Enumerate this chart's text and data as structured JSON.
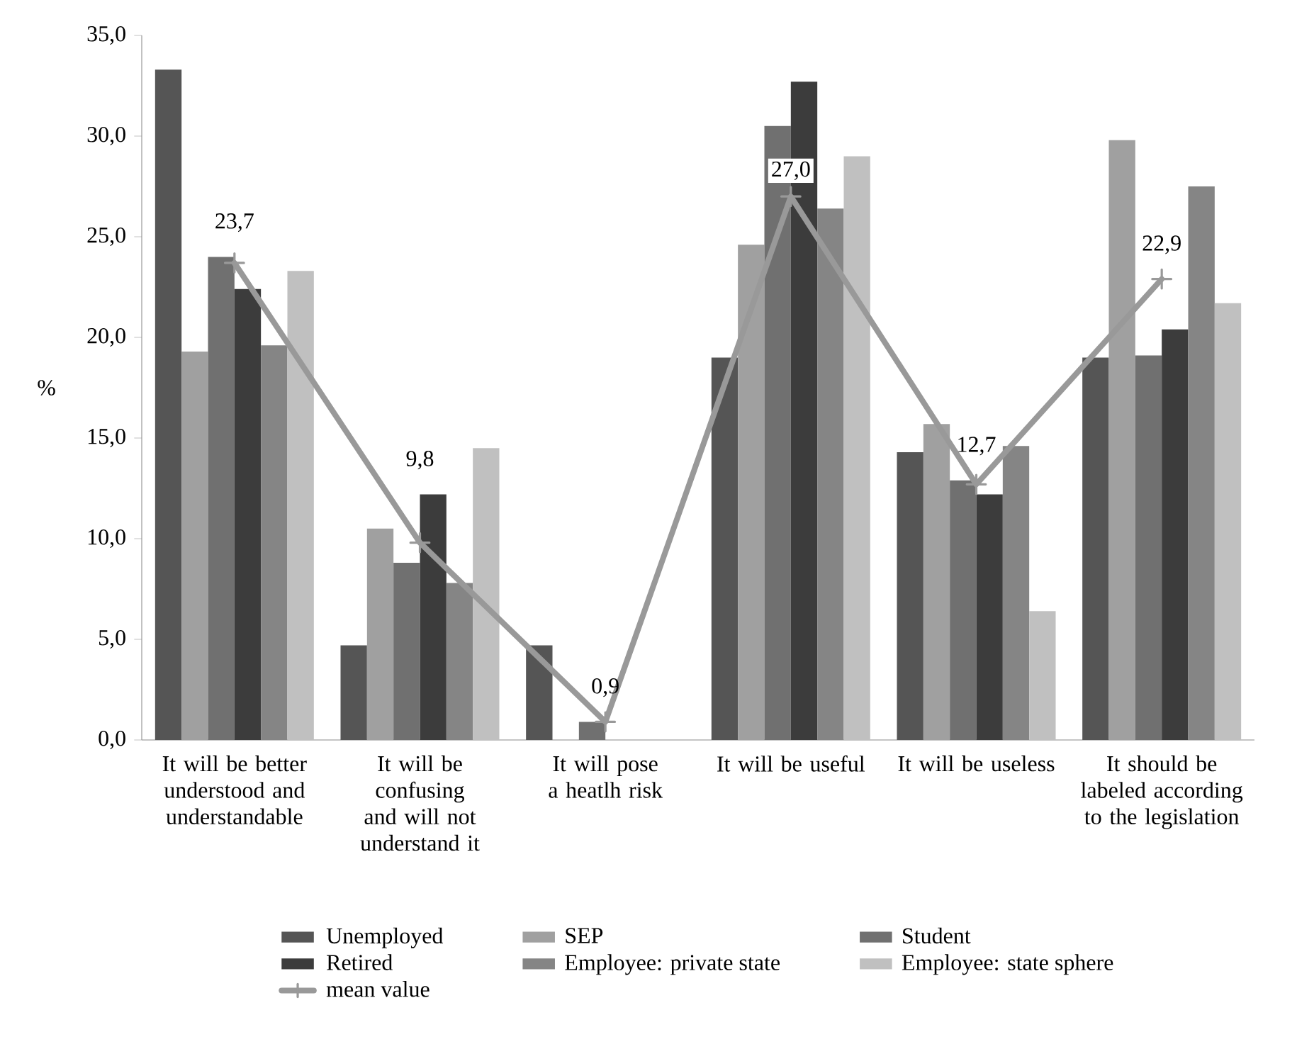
{
  "chart_data": {
    "type": "bar",
    "ylabel": "%",
    "categories": [
      "It will be better understood and understandable",
      "It will be confusing and will not understand it",
      "It will pose a heatlh risk",
      "It will be useful",
      "It will be useless",
      "It should be labeled according to the legislation"
    ],
    "series": [
      {
        "name": "Unemployed",
        "color": "#555555",
        "values": [
          33.3,
          4.7,
          4.7,
          19.0,
          14.3,
          19.0
        ]
      },
      {
        "name": "SEP",
        "color": "#a0a0a0",
        "values": [
          19.3,
          10.5,
          0,
          24.6,
          15.7,
          29.8
        ]
      },
      {
        "name": "Student",
        "color": "#707070",
        "values": [
          24.0,
          8.8,
          0.9,
          30.5,
          12.9,
          19.1
        ]
      },
      {
        "name": "Retired",
        "color": "#3c3c3c",
        "values": [
          22.4,
          12.2,
          0,
          32.7,
          12.2,
          20.4
        ]
      },
      {
        "name": "Employee: private state",
        "color": "#858585",
        "values": [
          19.6,
          7.8,
          0,
          26.4,
          14.6,
          27.5
        ]
      },
      {
        "name": "Employee: state sphere",
        "color": "#c0c0c0",
        "values": [
          23.3,
          14.5,
          0,
          29.0,
          6.4,
          21.7
        ]
      },
      {
        "name": "mean value",
        "type": "line",
        "color": "#999999",
        "marker": "cross",
        "line_style": "solid",
        "values": [
          23.7,
          9.8,
          0.9,
          27.0,
          12.7,
          22.9
        ],
        "value_labels": [
          "23,7",
          "9,8",
          "0,9",
          "27,0",
          "12,7",
          "22,9"
        ]
      }
    ],
    "ylim": [
      0,
      35
    ],
    "yticks": [
      {
        "value": 0,
        "label": "0,0"
      },
      {
        "value": 5,
        "label": "5,0"
      },
      {
        "value": 10,
        "label": "10,0"
      },
      {
        "value": 15,
        "label": "15,0"
      },
      {
        "value": 20,
        "label": "20,0"
      },
      {
        "value": 25,
        "label": "25,0"
      },
      {
        "value": 30,
        "label": "30,0"
      },
      {
        "value": 35,
        "label": "35,0"
      }
    ],
    "grid": false,
    "legend": "bottom"
  }
}
